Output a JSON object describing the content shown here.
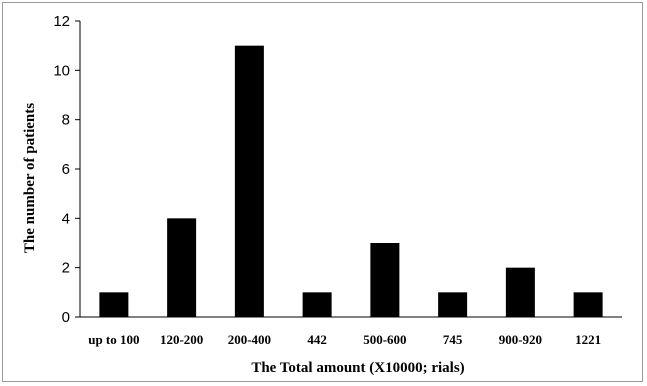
{
  "chart_data": {
    "type": "bar",
    "categories": [
      "up to 100",
      "120-200",
      "200-400",
      "442",
      "500-600",
      "745",
      "900-920",
      "1221"
    ],
    "values": [
      1,
      4,
      11,
      1,
      3,
      1,
      2,
      1
    ],
    "xlabel": "The Total amount (X10000; rials)",
    "ylabel": "The number of patients",
    "ylim": [
      0,
      12
    ],
    "yticks": [
      0,
      2,
      4,
      6,
      8,
      10,
      12
    ],
    "grid": false,
    "legend": "none",
    "bar_color": "#000000"
  }
}
